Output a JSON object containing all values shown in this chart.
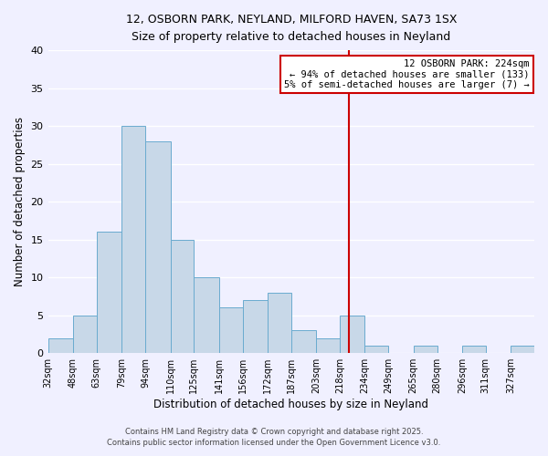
{
  "title": "12, OSBORN PARK, NEYLAND, MILFORD HAVEN, SA73 1SX",
  "subtitle": "Size of property relative to detached houses in Neyland",
  "xlabel": "Distribution of detached houses by size in Neyland",
  "ylabel": "Number of detached properties",
  "bar_color": "#c8d8e8",
  "bar_edge_color": "#6aabcf",
  "background_color": "#f0f0ff",
  "grid_color": "#ffffff",
  "bins": [
    32,
    48,
    63,
    79,
    94,
    110,
    125,
    141,
    156,
    172,
    187,
    203,
    218,
    234,
    249,
    265,
    280,
    296,
    311,
    327,
    342
  ],
  "counts": [
    2,
    5,
    16,
    30,
    28,
    15,
    10,
    6,
    7,
    8,
    3,
    2,
    5,
    1,
    0,
    1,
    0,
    1,
    0,
    1
  ],
  "property_line_x": 224,
  "property_line_color": "#cc0000",
  "annotation_title": "12 OSBORN PARK: 224sqm",
  "annotation_line1": "← 94% of detached houses are smaller (133)",
  "annotation_line2": "5% of semi-detached houses are larger (7) →",
  "annotation_box_color": "#ffffff",
  "annotation_box_edge_color": "#cc0000",
  "ylim": [
    0,
    40
  ],
  "yticks": [
    0,
    5,
    10,
    15,
    20,
    25,
    30,
    35,
    40
  ],
  "footnote1": "Contains HM Land Registry data © Crown copyright and database right 2025.",
  "footnote2": "Contains public sector information licensed under the Open Government Licence v3.0."
}
